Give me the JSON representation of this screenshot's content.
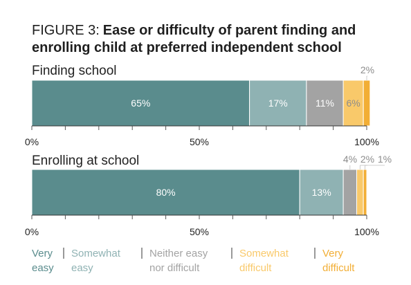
{
  "title": {
    "figure_label": "FIGURE 3:",
    "line1": "Ease or difficulty of parent finding and",
    "line2": "enrolling child at preferred independent school"
  },
  "colors": {
    "accent": "#4f8f90",
    "very_easy": "#5a8c8d",
    "somewhat_easy": "#8fb2b3",
    "neither": "#a3a3a3",
    "somewhat_difficult": "#f9c96a",
    "very_difficult": "#f2ae35",
    "label_dark_text": "#ffffff",
    "label_outside": "#8c8c8c"
  },
  "chart_data": {
    "type": "bar",
    "orientation": "horizontal",
    "stacked": true,
    "xlim": [
      0,
      100
    ],
    "ticks": [
      "0%",
      "50%",
      "100%"
    ],
    "categories": [
      "Very easy",
      "Somewhat easy",
      "Neither easy nor difficult",
      "Somewhat difficult",
      "Very difficult"
    ],
    "bars": [
      {
        "label": "Finding school",
        "values": [
          65,
          17,
          11,
          6,
          2
        ],
        "value_labels": [
          "65%",
          "17%",
          "11%",
          "6%",
          "2%"
        ]
      },
      {
        "label": "Enrolling at school",
        "values": [
          80,
          13,
          4,
          2,
          1
        ],
        "value_labels": [
          "80%",
          "13%",
          "4%",
          "2%",
          "1%"
        ]
      }
    ],
    "legend": [
      {
        "line1": "Very",
        "line2": "easy"
      },
      {
        "line1": "Somewhat",
        "line2": "easy"
      },
      {
        "line1": "Neither easy",
        "line2": "nor difficult"
      },
      {
        "line1": "Somewhat",
        "line2": "difficult"
      },
      {
        "line1": "Very",
        "line2": "difficult"
      }
    ],
    "legend_position": "bottom"
  }
}
